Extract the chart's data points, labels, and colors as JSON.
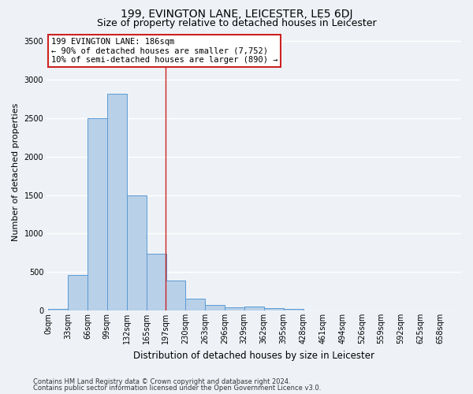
{
  "title": "199, EVINGTON LANE, LEICESTER, LE5 6DJ",
  "subtitle": "Size of property relative to detached houses in Leicester",
  "xlabel": "Distribution of detached houses by size in Leicester",
  "ylabel": "Number of detached properties",
  "footnote1": "Contains HM Land Registry data © Crown copyright and database right 2024.",
  "footnote2": "Contains public sector information licensed under the Open Government Licence v3.0.",
  "annotation_title": "199 EVINGTON LANE: 186sqm",
  "annotation_line1": "← 90% of detached houses are smaller (7,752)",
  "annotation_line2": "10% of semi-detached houses are larger (890) →",
  "bar_categories": [
    "0sqm",
    "33sqm",
    "66sqm",
    "99sqm",
    "132sqm",
    "165sqm",
    "197sqm",
    "230sqm",
    "263sqm",
    "296sqm",
    "329sqm",
    "362sqm",
    "395sqm",
    "428sqm",
    "461sqm",
    "494sqm",
    "526sqm",
    "559sqm",
    "592sqm",
    "625sqm",
    "658sqm"
  ],
  "bar_values": [
    20,
    460,
    2500,
    2820,
    1500,
    740,
    390,
    150,
    75,
    45,
    55,
    30,
    20,
    5,
    0,
    0,
    0,
    0,
    0,
    0,
    0
  ],
  "bin_starts": [
    0,
    33,
    66,
    99,
    132,
    165,
    197,
    230,
    263,
    296,
    329,
    362,
    395,
    428,
    461,
    494,
    526,
    559,
    592,
    625,
    658
  ],
  "bin_width": 33,
  "bar_color": "#b8d0e8",
  "bar_edge_color": "#5b9bd5",
  "vline_x": 197,
  "vline_color": "#cc2222",
  "bg_color": "#eef2f7",
  "grid_color": "#ffffff",
  "ylim": [
    0,
    3600
  ],
  "yticks": [
    0,
    500,
    1000,
    1500,
    2000,
    2500,
    3000,
    3500
  ],
  "annotation_box_facecolor": "#ffffff",
  "annotation_box_edgecolor": "#cc2222",
  "title_fontsize": 10,
  "subtitle_fontsize": 9,
  "tick_fontsize": 7,
  "ylabel_fontsize": 8,
  "xlabel_fontsize": 8.5,
  "annotation_fontsize": 7.5,
  "footnote_fontsize": 6
}
